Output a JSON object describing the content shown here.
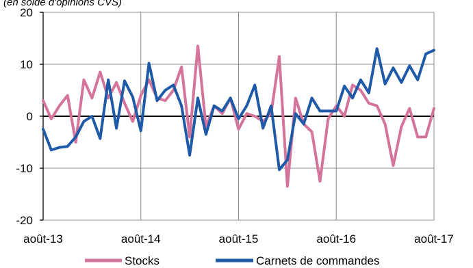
{
  "chart_data": {
    "type": "line",
    "unit_label": "(en solde d'opinions CVS)",
    "x": [
      "août-13",
      "sept-13",
      "oct-13",
      "nov-13",
      "déc-13",
      "janv-14",
      "févr-14",
      "mars-14",
      "avr-14",
      "mai-14",
      "juin-14",
      "juil-14",
      "août-14",
      "sept-14",
      "oct-14",
      "nov-14",
      "déc-14",
      "janv-15",
      "févr-15",
      "mars-15",
      "avr-15",
      "mai-15",
      "juin-15",
      "juil-15",
      "août-15",
      "sept-15",
      "oct-15",
      "nov-15",
      "déc-15",
      "janv-16",
      "févr-16",
      "mars-16",
      "avr-16",
      "mai-16",
      "juin-16",
      "juil-16",
      "août-16",
      "sept-16",
      "oct-16",
      "nov-16",
      "déc-16",
      "janv-17",
      "févr-17",
      "mars-17",
      "avr-17",
      "mai-17",
      "juin-17",
      "juil-17",
      "août-17"
    ],
    "x_tick_labels": [
      "août-13",
      "août-14",
      "août-15",
      "août-16",
      "août-17"
    ],
    "ylim": [
      -20,
      20
    ],
    "y_ticks": [
      20,
      10,
      0,
      -10,
      -20
    ],
    "y_tick_labels": [
      "20",
      "10",
      "0",
      "-10",
      "-20"
    ],
    "grid": true,
    "legend_position": "bottom",
    "series": [
      {
        "name": "Stocks",
        "color": "#d4749b",
        "values": [
          3,
          -0.5,
          2,
          4,
          -5,
          7,
          3.5,
          8.5,
          3.5,
          6.5,
          2.5,
          -1,
          4,
          7,
          3.5,
          3,
          5,
          9.5,
          -4,
          13.5,
          -2,
          2,
          0.5,
          3.5,
          -2.5,
          0.5,
          0,
          -1,
          0.5,
          11.5,
          -13.5,
          3.5,
          -1.5,
          -3,
          -12.5,
          -0.5,
          2,
          0,
          6,
          5,
          2.5,
          2,
          -1.5,
          -9.5,
          -2,
          1.5,
          -4,
          -4,
          1.5
        ]
      },
      {
        "name": "Carnets de commandes",
        "color": "#1f5aa8",
        "values": [
          -2.5,
          -6.5,
          -6,
          -5.8,
          -4,
          -1,
          0,
          -4.3,
          7,
          -2.3,
          6.8,
          3.7,
          -2.8,
          10.2,
          3,
          5,
          6,
          2,
          -7.5,
          3.5,
          -3.5,
          2,
          1,
          3.5,
          -0.5,
          2,
          6,
          -2.3,
          2,
          -10.3,
          -8.4,
          0.5,
          -1.5,
          3.5,
          1,
          1,
          1,
          5.8,
          3.5,
          7,
          4.5,
          13,
          6.2,
          9.3,
          6.5,
          9.7,
          7,
          12,
          12.7
        ]
      }
    ]
  }
}
